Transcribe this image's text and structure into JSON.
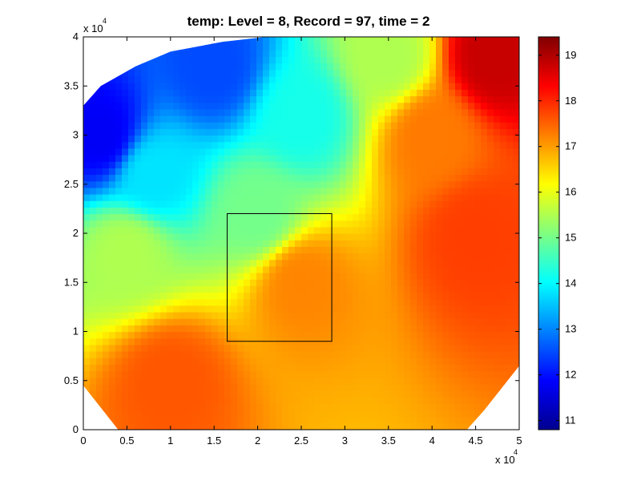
{
  "chart_data": {
    "type": "heatmap",
    "title": "temp:    Level = 8,    Record = 97,    time = 2",
    "variable": "temp",
    "level": 8,
    "record": 97,
    "time": 2,
    "xlabel": "",
    "ylabel": "",
    "xlim": [
      0,
      50000
    ],
    "ylim": [
      0,
      40000
    ],
    "x_ticks": [
      "0",
      "0.5",
      "1",
      "1.5",
      "2",
      "2.5",
      "3",
      "3.5",
      "4",
      "4.5",
      "5"
    ],
    "y_ticks": [
      "0",
      "0.5",
      "1",
      "1.5",
      "2",
      "2.5",
      "3",
      "3.5",
      "4"
    ],
    "x_multiplier": {
      "base": "x 10",
      "exponent": "4"
    },
    "y_multiplier": {
      "base": "x 10",
      "exponent": "4"
    },
    "colorbar": {
      "colormap": "jet",
      "range": [
        10.8,
        19.4
      ],
      "ticks": [
        "11",
        "12",
        "13",
        "14",
        "15",
        "16",
        "17",
        "18",
        "19"
      ]
    },
    "domain_corners": [
      [
        0,
        33000
      ],
      [
        2000,
        35000
      ],
      [
        6000,
        37000
      ],
      [
        10000,
        38500
      ],
      [
        16000,
        39500
      ],
      [
        21000,
        40000
      ],
      [
        50000,
        40000
      ],
      [
        50000,
        6500
      ],
      [
        46000,
        2000
      ],
      [
        44000,
        0
      ],
      [
        4000,
        0
      ],
      [
        0,
        4500
      ]
    ],
    "temperature_field_samples": [
      {
        "x": 2000,
        "y": 30000,
        "temp": 11.8
      },
      {
        "x": 15000,
        "y": 37000,
        "temp": 12.5
      },
      {
        "x": 8000,
        "y": 26000,
        "temp": 13.8
      },
      {
        "x": 25000,
        "y": 32000,
        "temp": 14.2
      },
      {
        "x": 35000,
        "y": 38000,
        "temp": 15.5
      },
      {
        "x": 20000,
        "y": 22000,
        "temp": 15.0
      },
      {
        "x": 40000,
        "y": 30000,
        "temp": 17.3
      },
      {
        "x": 25000,
        "y": 15000,
        "temp": 17.2
      },
      {
        "x": 45000,
        "y": 20000,
        "temp": 17.8
      },
      {
        "x": 47000,
        "y": 38000,
        "temp": 18.8
      },
      {
        "x": 10000,
        "y": 5000,
        "temp": 17.6
      },
      {
        "x": 5000,
        "y": 18000,
        "temp": 15.5
      }
    ],
    "subregion_box": {
      "x_range": [
        16500,
        28500
      ],
      "y_range": [
        9000,
        22000
      ]
    },
    "grid": false,
    "legend": "none"
  }
}
